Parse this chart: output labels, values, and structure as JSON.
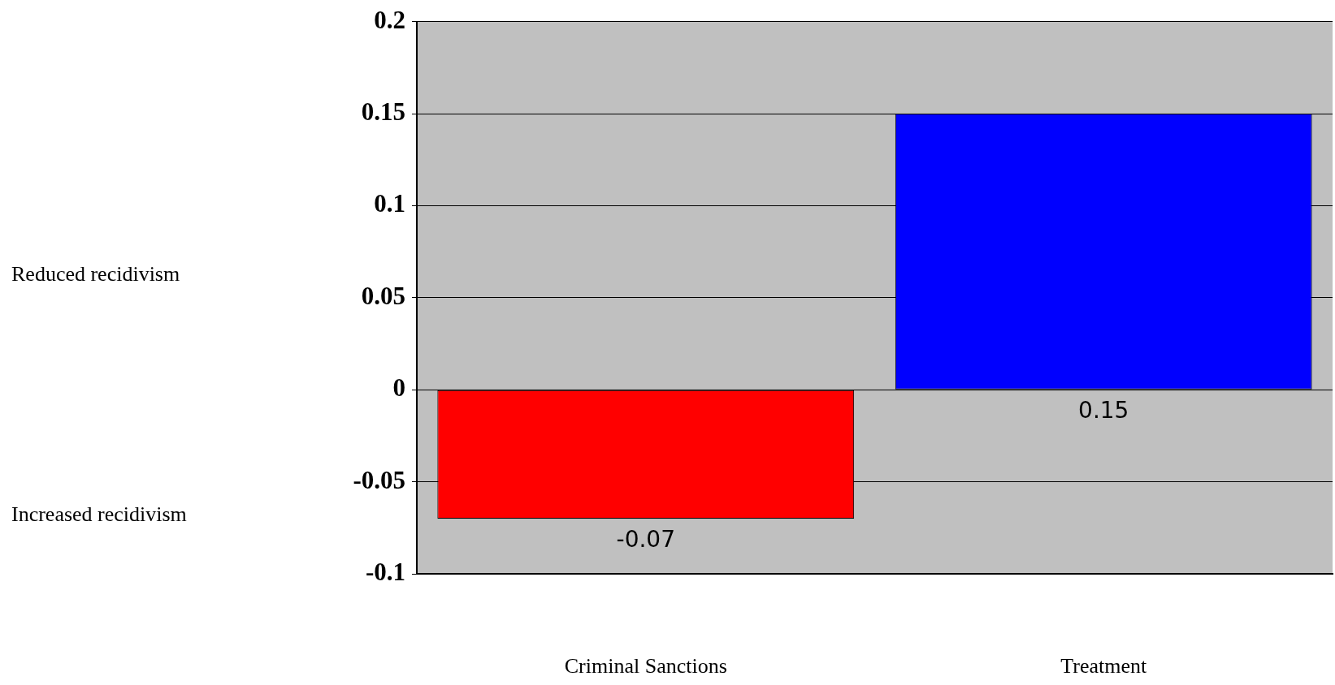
{
  "chart_data": {
    "type": "bar",
    "categories": [
      "Criminal Sanctions",
      "Treatment"
    ],
    "values": [
      -0.07,
      0.15
    ],
    "colors": [
      "#ff0000",
      "#0000ff"
    ],
    "ylim": [
      -0.1,
      0.2
    ],
    "yticks": [
      -0.1,
      -0.05,
      0,
      0.05,
      0.1,
      0.15,
      0.2
    ],
    "grid": "y",
    "data_labels": true,
    "annotations": [
      "Reduced recidivism",
      "Increased recidivism"
    ]
  }
}
